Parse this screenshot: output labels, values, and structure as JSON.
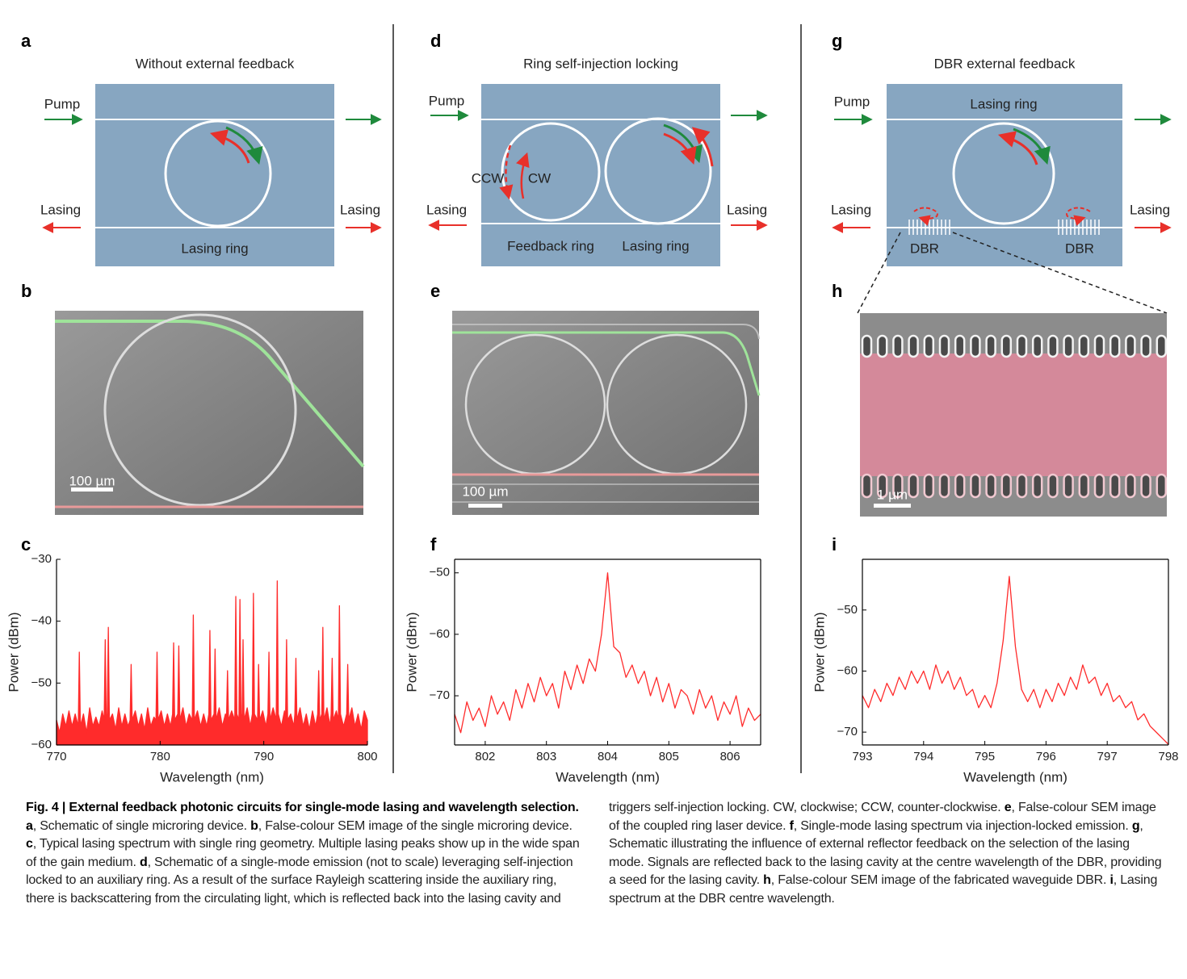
{
  "schematics": [
    {
      "label": "a",
      "title": "Without external feedback",
      "pump": "Pump",
      "lasing_left": "Lasing",
      "lasing_right": "Lasing",
      "ring": "Lasing ring"
    },
    {
      "label": "d",
      "title": "Ring self-injection locking",
      "pump": "Pump",
      "ccw": "CCW",
      "cw": "CW",
      "lasing_left": "Lasing",
      "lasing_right": "Lasing",
      "feedback_ring": "Feedback ring",
      "ring": "Lasing ring"
    },
    {
      "label": "g",
      "title": "DBR external feedback",
      "pump": "Pump",
      "ring": "Lasing ring",
      "lasing_left": "Lasing",
      "lasing_right": "Lasing",
      "dbr_left": "DBR",
      "dbr_right": "DBR"
    }
  ],
  "images": [
    {
      "label": "b",
      "scale_bar": "100 µm"
    },
    {
      "label": "e",
      "scale_bar": "100 µm"
    },
    {
      "label": "h",
      "scale_bar": "1 µm"
    }
  ],
  "chart_data": [
    {
      "type": "line",
      "panel_label": "c",
      "xlabel": "Wavelength (nm)",
      "ylabel": "Power (dBm)",
      "fill": true,
      "box": false,
      "xlim": [
        770,
        800
      ],
      "xticks": [
        770,
        780,
        790,
        800
      ],
      "ylim": [
        -60,
        -30
      ],
      "yticks": [
        {
          "value": -30,
          "label": "−30"
        },
        {
          "value": -40,
          "label": "−40"
        },
        {
          "value": -50,
          "label": "−50"
        },
        {
          "value": -60,
          "label": "−60"
        }
      ],
      "x": [
        770.0,
        770.3,
        770.6,
        770.9,
        771.2,
        771.5,
        771.8,
        772.1,
        772.2,
        772.3,
        772.6,
        772.9,
        773.2,
        773.5,
        773.8,
        774.1,
        774.4,
        774.6,
        774.7,
        774.8,
        774.9,
        775.0,
        775.1,
        775.4,
        775.7,
        776.0,
        776.3,
        776.6,
        776.9,
        777.1,
        777.2,
        777.3,
        777.6,
        777.9,
        778.2,
        778.5,
        778.8,
        779.1,
        779.4,
        779.6,
        779.7,
        779.8,
        780.1,
        780.4,
        780.7,
        781.0,
        781.2,
        781.3,
        781.4,
        781.7,
        781.8,
        781.9,
        782.2,
        782.5,
        782.8,
        783.1,
        783.2,
        783.3,
        783.6,
        783.9,
        784.2,
        784.5,
        784.7,
        784.8,
        784.9,
        785.2,
        785.3,
        785.4,
        785.7,
        786.0,
        786.3,
        786.4,
        786.5,
        786.6,
        786.9,
        787.2,
        787.3,
        787.4,
        787.6,
        787.7,
        787.8,
        787.9,
        788.0,
        788.1,
        788.4,
        788.7,
        788.9,
        789.0,
        789.1,
        789.4,
        789.5,
        789.6,
        789.9,
        790.2,
        790.4,
        790.5,
        790.6,
        790.9,
        791.2,
        791.3,
        791.4,
        791.7,
        792.0,
        792.1,
        792.2,
        792.3,
        792.6,
        792.9,
        793.0,
        793.1,
        793.2,
        793.5,
        793.8,
        794.1,
        794.4,
        794.7,
        795.0,
        795.2,
        795.3,
        795.4,
        795.6,
        795.7,
        795.8,
        796.1,
        796.4,
        796.5,
        796.6,
        796.7,
        797.0,
        797.2,
        797.3,
        797.4,
        797.7,
        798.0,
        798.1,
        798.2,
        798.5,
        798.8,
        799.1,
        799.4,
        799.7,
        800.0
      ],
      "series": [
        {
          "color": "#ff2b2b",
          "values": [
            -56,
            -58,
            -55,
            -57,
            -54.5,
            -57,
            -55,
            -57,
            -45,
            -57,
            -55,
            -58,
            -54,
            -57,
            -55.5,
            -57,
            -54.5,
            -56,
            -43,
            -56,
            -55,
            -41,
            -56,
            -55,
            -57.5,
            -54,
            -57,
            -55,
            -57,
            -56,
            -47,
            -56,
            -54.5,
            -57,
            -55,
            -57.5,
            -54,
            -57,
            -55.5,
            -56,
            -45,
            -56,
            -54.5,
            -57,
            -55,
            -57,
            -55,
            -43.5,
            -56,
            -55,
            -44,
            -56,
            -54,
            -57,
            -55,
            -56,
            -39,
            -56,
            -54.5,
            -57,
            -55,
            -57,
            -55,
            -41.5,
            -56,
            -55,
            -44.5,
            -56,
            -54,
            -57,
            -55,
            -56,
            -48,
            -56,
            -54.5,
            -56,
            -36,
            -55,
            -56,
            -36.5,
            -55,
            -56,
            -43,
            -56,
            -54,
            -57,
            -55,
            -35.5,
            -55,
            -56,
            -47,
            -56,
            -54.5,
            -57,
            -55,
            -45,
            -56,
            -54,
            -56,
            -33.5,
            -55,
            -57,
            -54.5,
            -56,
            -43,
            -56,
            -55,
            -57,
            -55,
            -46,
            -56,
            -54,
            -57,
            -55,
            -57.5,
            -54.5,
            -57,
            -55,
            -48,
            -56,
            -55,
            -41,
            -56,
            -54,
            -57,
            -55,
            -46,
            -56,
            -54.5,
            -56,
            -37.5,
            -55,
            -57,
            -55,
            -47,
            -56,
            -54,
            -57,
            -55,
            -57.5,
            -54.5,
            -56
          ]
        }
      ]
    },
    {
      "type": "line",
      "panel_label": "f",
      "xlabel": "Wavelength (nm)",
      "ylabel": "Power (dBm)",
      "fill": false,
      "box": true,
      "xlim": [
        801.5,
        806.5
      ],
      "xticks": [
        802,
        803,
        804,
        805,
        806
      ],
      "ylim": [
        -78,
        -47.8
      ],
      "yticks": [
        {
          "value": -50,
          "label": "−50"
        },
        {
          "value": -60,
          "label": "−60"
        },
        {
          "value": -70,
          "label": "−70"
        }
      ],
      "x": [
        801.5,
        801.6,
        801.7,
        801.8,
        801.9,
        802.0,
        802.1,
        802.2,
        802.3,
        802.4,
        802.5,
        802.6,
        802.7,
        802.8,
        802.9,
        803.0,
        803.1,
        803.2,
        803.3,
        803.4,
        803.5,
        803.6,
        803.7,
        803.8,
        803.9,
        804.0,
        804.1,
        804.2,
        804.3,
        804.4,
        804.5,
        804.6,
        804.7,
        804.8,
        804.9,
        805.0,
        805.1,
        805.2,
        805.3,
        805.4,
        805.5,
        805.6,
        805.7,
        805.8,
        805.9,
        806.0,
        806.1,
        806.2,
        806.3,
        806.4,
        806.5
      ],
      "series": [
        {
          "color": "#ff2b2b",
          "values": [
            -73,
            -76,
            -71,
            -74,
            -72,
            -75,
            -70,
            -73,
            -71,
            -74,
            -69,
            -72,
            -68,
            -71,
            -67,
            -70,
            -68,
            -72,
            -66,
            -69,
            -65,
            -68,
            -64,
            -66,
            -60,
            -50,
            -62,
            -63,
            -67,
            -65,
            -68,
            -66,
            -70,
            -67,
            -71,
            -68,
            -72,
            -69,
            -70,
            -73,
            -69,
            -72,
            -70,
            -74,
            -71,
            -73,
            -70,
            -75,
            -72,
            -74,
            -73
          ]
        }
      ]
    },
    {
      "type": "line",
      "panel_label": "i",
      "xlabel": "Wavelength (nm)",
      "ylabel": "Power (dBm)",
      "fill": false,
      "box": true,
      "xlim": [
        793,
        798
      ],
      "xticks": [
        793,
        794,
        795,
        796,
        797,
        798
      ],
      "ylim": [
        -72.1,
        -41.7
      ],
      "yticks": [
        {
          "value": -50,
          "label": "−50"
        },
        {
          "value": -60,
          "label": "−60"
        },
        {
          "value": -70,
          "label": "−70"
        }
      ],
      "x": [
        793.0,
        793.1,
        793.2,
        793.3,
        793.4,
        793.5,
        793.6,
        793.7,
        793.8,
        793.9,
        794.0,
        794.1,
        794.2,
        794.3,
        794.4,
        794.5,
        794.6,
        794.7,
        794.8,
        794.9,
        795.0,
        795.1,
        795.2,
        795.3,
        795.4,
        795.5,
        795.6,
        795.7,
        795.8,
        795.9,
        796.0,
        796.1,
        796.2,
        796.3,
        796.4,
        796.5,
        796.6,
        796.7,
        796.8,
        796.9,
        797.0,
        797.1,
        797.2,
        797.3,
        797.4,
        797.5,
        797.6,
        797.7,
        797.8,
        797.9,
        798.0
      ],
      "series": [
        {
          "color": "#ff2b2b",
          "values": [
            -64,
            -66,
            -63,
            -65,
            -62,
            -64,
            -61,
            -63,
            -60,
            -62,
            -60,
            -63,
            -59,
            -62,
            -60,
            -63,
            -61,
            -64,
            -63,
            -66,
            -64,
            -66,
            -62,
            -55,
            -44.5,
            -56,
            -63,
            -65,
            -63,
            -66,
            -63,
            -65,
            -62,
            -64,
            -61,
            -63,
            -59,
            -62,
            -61,
            -64,
            -62,
            -65,
            -64,
            -66,
            -65,
            -68,
            -67,
            -69,
            -70,
            -71,
            -72
          ]
        }
      ]
    }
  ],
  "caption": [
    {
      "text": "Fig. 4 | External feedback photonic circuits for single-mode lasing and wavelength selection. ",
      "bold": true
    },
    {
      "text": "a",
      "bold": true
    },
    {
      "text": ", Schematic of single microring device. ",
      "bold": false
    },
    {
      "text": "b",
      "bold": true
    },
    {
      "text": ", False-colour SEM image of the single microring device. ",
      "bold": false
    },
    {
      "text": "c",
      "bold": true
    },
    {
      "text": ", Typical lasing spectrum with single ring geometry. Multiple lasing peaks show up in the wide span of the gain medium. ",
      "bold": false
    },
    {
      "text": "d",
      "bold": true
    },
    {
      "text": ", Schematic of a single-mode emission (not to scale) leveraging self-injection locked to an auxiliary ring. As a result of the surface Rayleigh scattering inside the auxiliary ring, there is backscattering from the circulating light, which is reflected back into the lasing cavity and triggers self-injection locking. CW, clockwise; CCW, counter-clockwise. ",
      "bold": false
    },
    {
      "text": "e",
      "bold": true
    },
    {
      "text": ", False-colour SEM image of the coupled ring laser device. ",
      "bold": false
    },
    {
      "text": "f",
      "bold": true
    },
    {
      "text": ", Single-mode lasing spectrum via injection-locked emission. ",
      "bold": false
    },
    {
      "text": "g",
      "bold": true
    },
    {
      "text": ", Schematic illustrating the influence of external reflector feedback on the selection of the lasing mode. Signals are reflected back to the lasing cavity at the centre wavelength of the DBR, providing a seed for the lasing cavity. ",
      "bold": false
    },
    {
      "text": "h",
      "bold": true
    },
    {
      "text": ", False-colour SEM image of the fabricated waveguide DBR. ",
      "bold": false
    },
    {
      "text": "i",
      "bold": true
    },
    {
      "text": ", Lasing spectrum at the DBR centre wavelength.",
      "bold": false
    }
  ]
}
